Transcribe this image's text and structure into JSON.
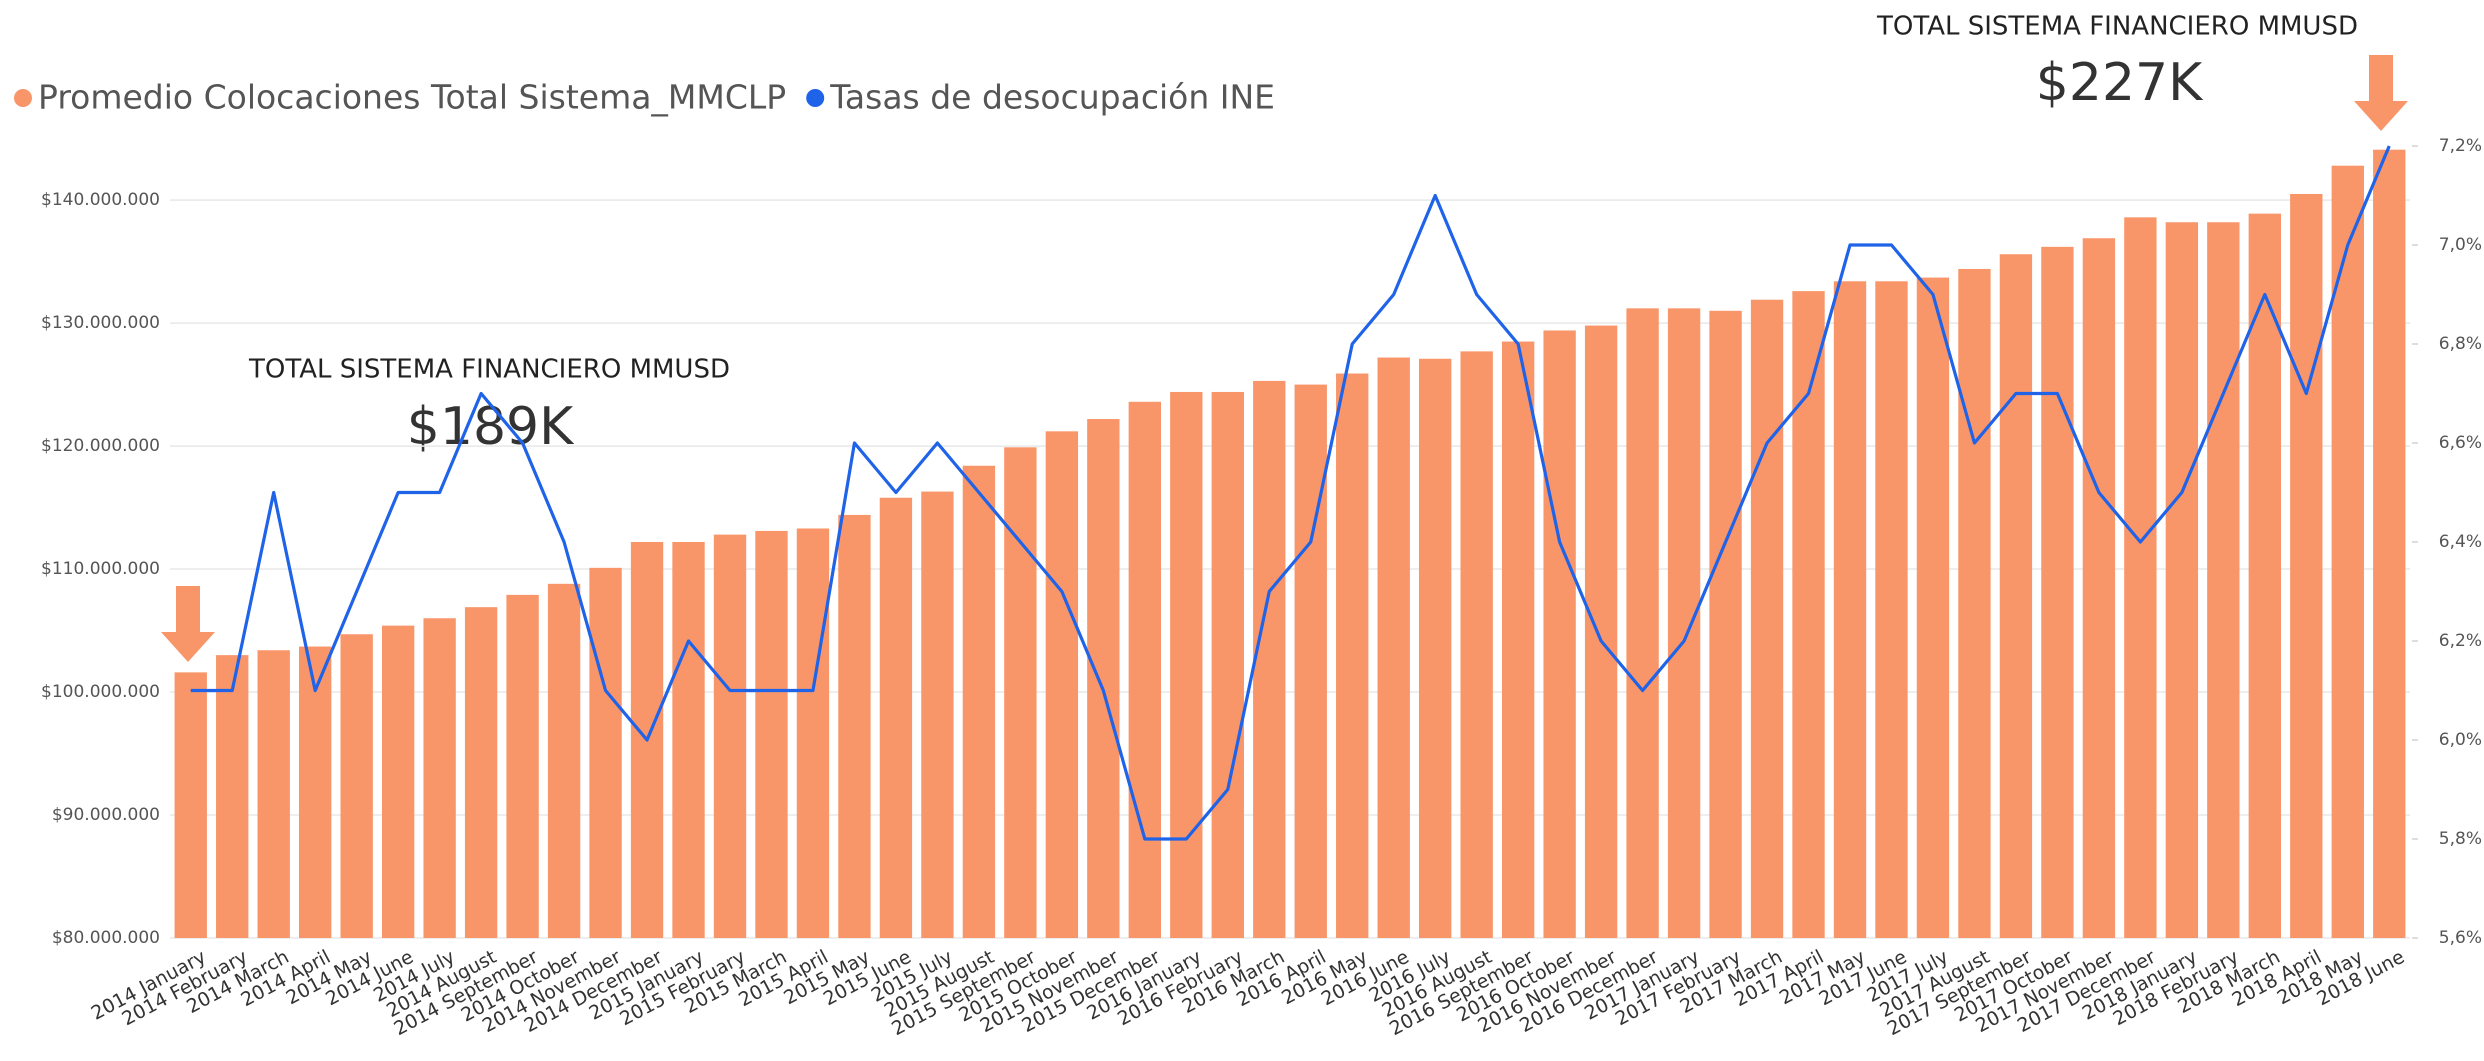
{
  "chart_data": {
    "type": "combo",
    "categories": [
      "2014 January",
      "2014 February",
      "2014 March",
      "2014 April",
      "2014 May",
      "2014 June",
      "2014 July",
      "2014 August",
      "2014 September",
      "2014 October",
      "2014 November",
      "2014 December",
      "2015 January",
      "2015 February",
      "2015 March",
      "2015 April",
      "2015 May",
      "2015 June",
      "2015 July",
      "2015 August",
      "2015 September",
      "2015 October",
      "2015 November",
      "2015 December",
      "2016 January",
      "2016 February",
      "2016 March",
      "2016 April",
      "2016 May",
      "2016 June",
      "2016 July",
      "2016 August",
      "2016 September",
      "2016 October",
      "2016 November",
      "2016 December",
      "2017 January",
      "2017 February",
      "2017 March",
      "2017 April",
      "2017 May",
      "2017 June",
      "2017 July",
      "2017 August",
      "2017 September",
      "2017 October",
      "2017 November",
      "2017 December",
      "2018 January",
      "2018 February",
      "2018 March",
      "2018 April",
      "2018 May",
      "2018 June"
    ],
    "series": [
      {
        "name": "Promedio Colocaciones Total Sistema_MMCLP",
        "type": "bar",
        "color": "#f8966a",
        "axis": "y",
        "values": [
          101600000,
          103000000,
          103400000,
          103700000,
          104700000,
          105400000,
          106000000,
          106900000,
          107900000,
          108800000,
          110100000,
          112200000,
          112200000,
          112800000,
          113100000,
          113300000,
          114400000,
          115800000,
          116300000,
          118400000,
          119900000,
          121200000,
          122200000,
          123600000,
          124400000,
          124400000,
          125300000,
          125000000,
          125900000,
          127200000,
          127100000,
          127700000,
          128500000,
          129400000,
          129800000,
          131200000,
          131200000,
          131000000,
          131900000,
          132600000,
          133400000,
          133400000,
          133700000,
          134400000,
          135600000,
          136200000,
          136900000,
          138600000,
          138200000,
          138200000,
          138900000,
          140500000,
          142800000,
          144100000
        ]
      },
      {
        "name": "Tasas de desocupación INE",
        "type": "line",
        "color": "#1f63e8",
        "axis": "y2",
        "values": [
          6.1,
          6.1,
          6.5,
          6.1,
          6.3,
          6.5,
          6.5,
          6.7,
          6.6,
          6.4,
          6.1,
          6.0,
          6.2,
          6.1,
          6.1,
          6.1,
          6.6,
          6.5,
          6.6,
          6.5,
          6.4,
          6.3,
          6.1,
          5.8,
          5.8,
          5.9,
          6.3,
          6.4,
          6.8,
          6.9,
          7.1,
          6.9,
          6.8,
          6.4,
          6.2,
          6.1,
          6.2,
          6.4,
          6.6,
          6.7,
          7.0,
          7.0,
          6.9,
          6.6,
          6.7,
          6.7,
          6.5,
          6.4,
          6.5,
          6.7,
          6.9,
          6.7,
          7.0,
          7.2
        ]
      }
    ],
    "ylim": [
      80000000,
      144400000
    ],
    "yticks": [
      {
        "value": 80000000,
        "label": "$80.000.000"
      },
      {
        "value": 90000000,
        "label": "$90.000.000"
      },
      {
        "value": 100000000,
        "label": "$100.000.000"
      },
      {
        "value": 110000000,
        "label": "$110.000.000"
      },
      {
        "value": 120000000,
        "label": "$120.000.000"
      },
      {
        "value": 130000000,
        "label": "$130.000.000"
      },
      {
        "value": 140000000,
        "label": "$140.000.000"
      }
    ],
    "y2lim": [
      5.6,
      7.2
    ],
    "y2ticks": [
      {
        "value": 5.6,
        "label": "5,6%"
      },
      {
        "value": 5.8,
        "label": "5,8%"
      },
      {
        "value": 6.0,
        "label": "6,0%"
      },
      {
        "value": 6.2,
        "label": "6,2%"
      },
      {
        "value": 6.4,
        "label": "6,4%"
      },
      {
        "value": 6.6,
        "label": "6,6%"
      },
      {
        "value": 6.8,
        "label": "6,8%"
      },
      {
        "value": 7.0,
        "label": "7,0%"
      },
      {
        "value": 7.2,
        "label": "7,2%"
      }
    ],
    "grid": true,
    "legend": "top-left",
    "annotations": [
      {
        "title": "TOTAL SISTEMA FINANCIERO MMUSD",
        "value": "$189K"
      },
      {
        "title": "TOTAL SISTEMA FINANCIERO MMUSD",
        "value": "$227K"
      }
    ]
  }
}
